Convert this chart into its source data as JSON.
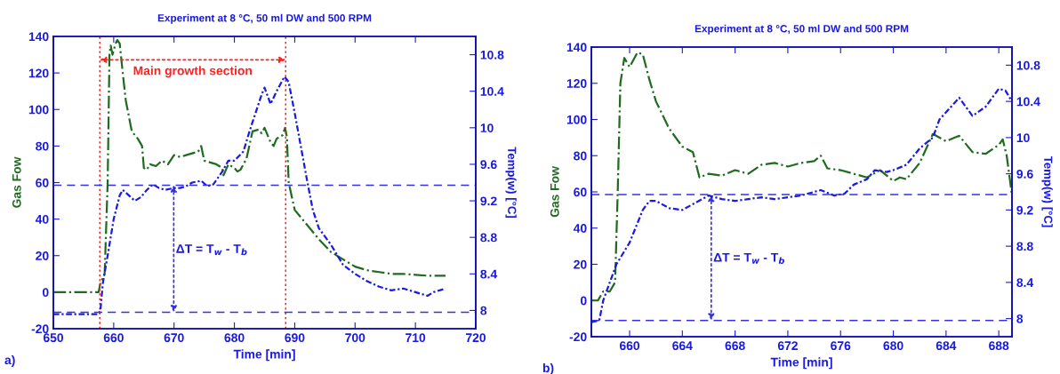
{
  "chart_data": [
    {
      "type": "line",
      "title": "Experiment at 8 °C, 50 ml DW and 500 RPM",
      "xlabel": "Time [min]",
      "ylabel": "Gas Fow",
      "y2label": "Temp(w) [°C]",
      "xlim": [
        650,
        720
      ],
      "xticks": [
        650,
        660,
        670,
        680,
        690,
        700,
        710,
        720
      ],
      "ylim": [
        -20,
        140
      ],
      "yticks": [
        -20,
        0,
        20,
        40,
        60,
        80,
        100,
        120,
        140
      ],
      "y2lim": [
        7.8,
        11.0
      ],
      "y2ticks": [
        8,
        8.4,
        8.8,
        9.2,
        9.6,
        10,
        10.4,
        10.8
      ],
      "grid": false,
      "legend": false,
      "marker": "none",
      "series": [
        {
          "color": "#1f6b1f",
          "line_style": "dashed",
          "x": [
            650,
            657.5,
            657.8,
            658.5,
            659,
            659.3,
            659.5,
            659.8,
            660.3,
            660.6,
            661,
            661.5,
            662,
            663,
            664,
            664.7,
            665,
            665.5,
            666,
            667,
            668,
            669,
            670,
            671,
            672,
            673,
            674,
            674.5,
            675,
            676,
            677,
            678,
            678.2,
            679,
            680,
            680.5,
            681,
            682,
            683,
            684,
            684.5,
            685,
            686,
            686.5,
            687,
            688,
            688.4,
            688.7,
            689,
            690,
            692,
            694,
            696,
            698,
            700,
            702,
            704,
            706,
            708,
            710,
            712,
            715
          ],
          "values": [
            0,
            0,
            5,
            10,
            60,
            130,
            135,
            130,
            136,
            138,
            136,
            120,
            105,
            88,
            84,
            80,
            68,
            67,
            70,
            69,
            72,
            70,
            75,
            74,
            75,
            76,
            77,
            80,
            72,
            71,
            70,
            68,
            64,
            70,
            68,
            66,
            67,
            73,
            88,
            89,
            87,
            90,
            82,
            80,
            84,
            86,
            90,
            85,
            60,
            45,
            37,
            29,
            22,
            18,
            14,
            12,
            11,
            10,
            10,
            9.5,
            9,
            9
          ]
        },
        {
          "color": "#1a1ae0",
          "line_style": "dotted",
          "axis": "y2",
          "x": [
            650,
            657.5,
            657.8,
            658.2,
            659,
            660,
            661,
            661.5,
            662.5,
            663.5,
            664.5,
            665.5,
            666.5,
            667.5,
            668.5,
            670,
            671,
            672,
            673,
            674.5,
            675.5,
            676.5,
            678,
            679,
            680,
            681.5,
            682.5,
            683.5,
            684.5,
            685,
            686,
            687,
            688.3,
            689,
            690,
            691,
            692,
            693,
            694,
            696,
            698,
            700,
            702,
            704,
            706,
            708,
            710,
            712,
            713,
            715
          ],
          "values": [
            7.96,
            7.96,
            8.0,
            8.3,
            8.6,
            9.0,
            9.26,
            9.32,
            9.26,
            9.2,
            9.24,
            9.32,
            9.38,
            9.34,
            9.32,
            9.34,
            9.34,
            9.36,
            9.4,
            9.42,
            9.36,
            9.38,
            9.52,
            9.64,
            9.64,
            9.74,
            9.96,
            10.16,
            10.36,
            10.44,
            10.26,
            10.4,
            10.56,
            10.5,
            10.16,
            9.8,
            9.44,
            9.1,
            8.9,
            8.72,
            8.5,
            8.4,
            8.32,
            8.26,
            8.22,
            8.24,
            8.2,
            8.16,
            8.2,
            8.24
          ]
        }
      ],
      "ref_lines": [
        {
          "axis": "x",
          "value": 657.7,
          "color": "#ff2020",
          "line_style": "dotted"
        },
        {
          "axis": "x",
          "value": 688.5,
          "color": "#ff2020",
          "line_style": "dotted"
        },
        {
          "axis": "y2",
          "value": 9.37,
          "color": "#3333dd",
          "line_style": "dashed"
        },
        {
          "axis": "y2",
          "value": 7.98,
          "color": "#3333dd",
          "line_style": "dashed"
        }
      ],
      "annotations": [
        "Main growth section",
        "ΔT = T$_{w}$ - T$_{b}$",
        "a)"
      ]
    },
    {
      "type": "line",
      "title": "Experiment at 8 °C, 50 ml DW and 500 RPM",
      "xlabel": "Time [min]",
      "ylabel": "Gas Fow",
      "y2label": "Temp(w) [°C]",
      "xlim": [
        657.1,
        689.0
      ],
      "xticks": [
        660,
        664,
        668,
        672,
        676,
        680,
        684,
        688
      ],
      "ylim": [
        -20,
        140
      ],
      "yticks": [
        -20,
        0,
        20,
        40,
        60,
        80,
        100,
        120,
        140
      ],
      "y2lim": [
        7.8,
        11.0
      ],
      "y2ticks": [
        8,
        8.4,
        8.8,
        9.2,
        9.6,
        10,
        10.4,
        10.8
      ],
      "grid": false,
      "legend": false,
      "marker": "none",
      "series": [
        {
          "color": "#1f6b1f",
          "line_style": "dashed",
          "x": [
            657.1,
            657.6,
            658,
            658.5,
            658.9,
            659.1,
            659.3,
            659.6,
            660,
            660.6,
            661,
            661.5,
            662,
            663,
            664,
            664.8,
            665.3,
            666,
            667,
            668,
            669,
            670,
            671,
            672,
            673,
            674,
            674.5,
            675,
            676,
            677,
            678,
            678.5,
            679,
            680,
            680.5,
            681,
            682,
            683,
            684,
            685,
            686,
            687,
            688,
            688.3,
            688.6,
            689
          ],
          "values": [
            0,
            0,
            5,
            5,
            10,
            60,
            120,
            134,
            129,
            137,
            136,
            122,
            110,
            95,
            85,
            82,
            68,
            70,
            69,
            72,
            70,
            75,
            76,
            74,
            76,
            77,
            80,
            73,
            72,
            70,
            68,
            70,
            72,
            66,
            68,
            67,
            76,
            92,
            88,
            91,
            82,
            81,
            86,
            89,
            80,
            58
          ]
        },
        {
          "color": "#1a1ae0",
          "line_style": "dotted",
          "axis": "y2",
          "x": [
            657.1,
            657.7,
            658,
            658.5,
            659,
            660,
            661,
            661.5,
            662,
            663,
            664,
            665,
            666,
            667,
            668,
            669,
            670,
            671,
            672,
            673,
            674.5,
            675.5,
            676.3,
            677,
            678,
            678.6,
            679.5,
            680,
            681,
            682,
            683,
            683.5,
            684.5,
            685,
            686,
            687,
            688,
            688.5,
            689
          ],
          "values": [
            7.96,
            7.98,
            8.2,
            8.4,
            8.6,
            8.84,
            9.2,
            9.3,
            9.3,
            9.22,
            9.2,
            9.28,
            9.36,
            9.32,
            9.3,
            9.32,
            9.34,
            9.32,
            9.34,
            9.36,
            9.42,
            9.36,
            9.38,
            9.48,
            9.54,
            9.64,
            9.62,
            9.64,
            9.7,
            9.88,
            10.0,
            10.2,
            10.36,
            10.44,
            10.24,
            10.34,
            10.54,
            10.52,
            10.4
          ]
        }
      ],
      "ref_lines": [
        {
          "axis": "y2",
          "value": 9.37,
          "color": "#3333dd",
          "line_style": "dashed"
        },
        {
          "axis": "y2",
          "value": 7.98,
          "color": "#3333dd",
          "line_style": "dashed"
        }
      ],
      "annotations": [
        "ΔT = T$_{w}$ - T$_{b}$",
        "b)"
      ]
    }
  ]
}
